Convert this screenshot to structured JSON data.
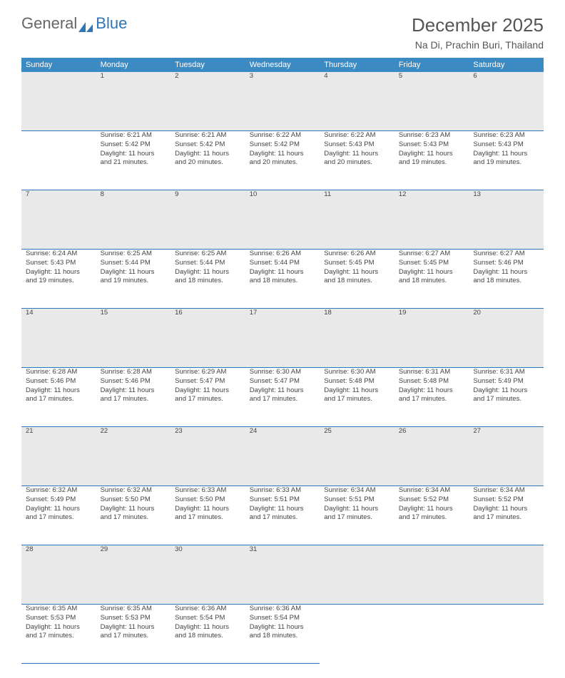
{
  "brand": {
    "part1": "General",
    "part2": "Blue"
  },
  "header": {
    "title": "December 2025",
    "location": "Na Di, Prachin Buri, Thailand"
  },
  "colors": {
    "header_bg": "#3b8ac4",
    "daynum_bg": "#e9e9e9",
    "row_border": "#2f76b8",
    "brand_blue": "#2f76b8"
  },
  "weekdays": [
    "Sunday",
    "Monday",
    "Tuesday",
    "Wednesday",
    "Thursday",
    "Friday",
    "Saturday"
  ],
  "start_offset": 1,
  "days": [
    {
      "n": 1,
      "sr": "6:21 AM",
      "ss": "5:42 PM",
      "dl": "11 hours and 21 minutes."
    },
    {
      "n": 2,
      "sr": "6:21 AM",
      "ss": "5:42 PM",
      "dl": "11 hours and 20 minutes."
    },
    {
      "n": 3,
      "sr": "6:22 AM",
      "ss": "5:42 PM",
      "dl": "11 hours and 20 minutes."
    },
    {
      "n": 4,
      "sr": "6:22 AM",
      "ss": "5:43 PM",
      "dl": "11 hours and 20 minutes."
    },
    {
      "n": 5,
      "sr": "6:23 AM",
      "ss": "5:43 PM",
      "dl": "11 hours and 19 minutes."
    },
    {
      "n": 6,
      "sr": "6:23 AM",
      "ss": "5:43 PM",
      "dl": "11 hours and 19 minutes."
    },
    {
      "n": 7,
      "sr": "6:24 AM",
      "ss": "5:43 PM",
      "dl": "11 hours and 19 minutes."
    },
    {
      "n": 8,
      "sr": "6:25 AM",
      "ss": "5:44 PM",
      "dl": "11 hours and 19 minutes."
    },
    {
      "n": 9,
      "sr": "6:25 AM",
      "ss": "5:44 PM",
      "dl": "11 hours and 18 minutes."
    },
    {
      "n": 10,
      "sr": "6:26 AM",
      "ss": "5:44 PM",
      "dl": "11 hours and 18 minutes."
    },
    {
      "n": 11,
      "sr": "6:26 AM",
      "ss": "5:45 PM",
      "dl": "11 hours and 18 minutes."
    },
    {
      "n": 12,
      "sr": "6:27 AM",
      "ss": "5:45 PM",
      "dl": "11 hours and 18 minutes."
    },
    {
      "n": 13,
      "sr": "6:27 AM",
      "ss": "5:46 PM",
      "dl": "11 hours and 18 minutes."
    },
    {
      "n": 14,
      "sr": "6:28 AM",
      "ss": "5:46 PM",
      "dl": "11 hours and 17 minutes."
    },
    {
      "n": 15,
      "sr": "6:28 AM",
      "ss": "5:46 PM",
      "dl": "11 hours and 17 minutes."
    },
    {
      "n": 16,
      "sr": "6:29 AM",
      "ss": "5:47 PM",
      "dl": "11 hours and 17 minutes."
    },
    {
      "n": 17,
      "sr": "6:30 AM",
      "ss": "5:47 PM",
      "dl": "11 hours and 17 minutes."
    },
    {
      "n": 18,
      "sr": "6:30 AM",
      "ss": "5:48 PM",
      "dl": "11 hours and 17 minutes."
    },
    {
      "n": 19,
      "sr": "6:31 AM",
      "ss": "5:48 PM",
      "dl": "11 hours and 17 minutes."
    },
    {
      "n": 20,
      "sr": "6:31 AM",
      "ss": "5:49 PM",
      "dl": "11 hours and 17 minutes."
    },
    {
      "n": 21,
      "sr": "6:32 AM",
      "ss": "5:49 PM",
      "dl": "11 hours and 17 minutes."
    },
    {
      "n": 22,
      "sr": "6:32 AM",
      "ss": "5:50 PM",
      "dl": "11 hours and 17 minutes."
    },
    {
      "n": 23,
      "sr": "6:33 AM",
      "ss": "5:50 PM",
      "dl": "11 hours and 17 minutes."
    },
    {
      "n": 24,
      "sr": "6:33 AM",
      "ss": "5:51 PM",
      "dl": "11 hours and 17 minutes."
    },
    {
      "n": 25,
      "sr": "6:34 AM",
      "ss": "5:51 PM",
      "dl": "11 hours and 17 minutes."
    },
    {
      "n": 26,
      "sr": "6:34 AM",
      "ss": "5:52 PM",
      "dl": "11 hours and 17 minutes."
    },
    {
      "n": 27,
      "sr": "6:34 AM",
      "ss": "5:52 PM",
      "dl": "11 hours and 17 minutes."
    },
    {
      "n": 28,
      "sr": "6:35 AM",
      "ss": "5:53 PM",
      "dl": "11 hours and 17 minutes."
    },
    {
      "n": 29,
      "sr": "6:35 AM",
      "ss": "5:53 PM",
      "dl": "11 hours and 17 minutes."
    },
    {
      "n": 30,
      "sr": "6:36 AM",
      "ss": "5:54 PM",
      "dl": "11 hours and 18 minutes."
    },
    {
      "n": 31,
      "sr": "6:36 AM",
      "ss": "5:54 PM",
      "dl": "11 hours and 18 minutes."
    }
  ],
  "labels": {
    "sunrise": "Sunrise:",
    "sunset": "Sunset:",
    "daylight": "Daylight:"
  }
}
